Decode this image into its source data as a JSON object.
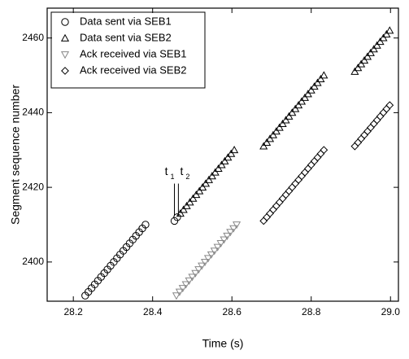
{
  "chart_data": {
    "type": "scatter",
    "xlabel": "Time (s)",
    "ylabel": "Segment sequence number",
    "xlim": [
      28.134,
      29.02
    ],
    "ylim": [
      2389.5,
      2468
    ],
    "xticks": [
      28.2,
      28.4,
      28.6,
      28.8,
      {
        "value": 29,
        "label": "29.0"
      }
    ],
    "yticks": [
      2400,
      2420,
      2440,
      2460
    ],
    "legend": "upper left",
    "annotations": [
      {
        "text": "t",
        "sub": "1",
        "x": 28.455
      },
      {
        "text": "t",
        "sub": "2",
        "x": 28.465
      }
    ],
    "series": [
      {
        "name": "Data sent via SEB1",
        "marker": "circle",
        "color": "#000000",
        "x": [
          28.23,
          28.238,
          28.246,
          28.254,
          28.262,
          28.27,
          28.278,
          28.286,
          28.294,
          28.302,
          28.31,
          28.318,
          28.326,
          28.334,
          28.342,
          28.35,
          28.358,
          28.366,
          28.374,
          28.382,
          28.455,
          28.462
        ],
        "y": [
          2391,
          2392,
          2393,
          2394,
          2395,
          2396,
          2397,
          2398,
          2399,
          2400,
          2401,
          2402,
          2403,
          2404,
          2405,
          2406,
          2407,
          2408,
          2409,
          2410,
          2411,
          2412
        ]
      },
      {
        "name": "Data sent via SEB2",
        "marker": "triangle-up",
        "color": "#000000",
        "x": [
          28.47,
          28.478,
          28.486,
          28.494,
          28.502,
          28.51,
          28.518,
          28.526,
          28.534,
          28.542,
          28.55,
          28.558,
          28.566,
          28.574,
          28.582,
          28.59,
          28.598,
          28.606,
          28.68,
          28.688,
          28.696,
          28.704,
          28.712,
          28.72,
          28.728,
          28.736,
          28.744,
          28.752,
          28.76,
          28.768,
          28.776,
          28.784,
          28.792,
          28.8,
          28.808,
          28.816,
          28.824,
          28.832,
          28.91,
          28.918,
          28.926,
          28.934,
          28.942,
          28.95,
          28.958,
          28.966,
          28.974,
          28.982,
          28.99,
          28.998
        ],
        "y": [
          2413,
          2414,
          2415,
          2416,
          2417,
          2418,
          2419,
          2420,
          2421,
          2422,
          2423,
          2424,
          2425,
          2426,
          2427,
          2428,
          2429,
          2430,
          2431,
          2432,
          2433,
          2434,
          2435,
          2436,
          2437,
          2438,
          2439,
          2440,
          2441,
          2442,
          2443,
          2444,
          2445,
          2446,
          2447,
          2448,
          2449,
          2450,
          2451,
          2452,
          2453,
          2454,
          2455,
          2456,
          2457,
          2458,
          2459,
          2460,
          2461,
          2462
        ]
      },
      {
        "name": "Ack received via SEB1",
        "marker": "triangle-down",
        "color": "#888888",
        "x": [
          28.46,
          28.468,
          28.476,
          28.484,
          28.492,
          28.5,
          28.508,
          28.516,
          28.524,
          28.532,
          28.54,
          28.548,
          28.556,
          28.564,
          28.572,
          28.58,
          28.588,
          28.596,
          28.604,
          28.612
        ],
        "y": [
          2391,
          2392,
          2393,
          2394,
          2395,
          2396,
          2397,
          2398,
          2399,
          2400,
          2401,
          2402,
          2403,
          2404,
          2405,
          2406,
          2407,
          2408,
          2409,
          2410
        ]
      },
      {
        "name": "Ack received via SEB2",
        "marker": "diamond",
        "color": "#000000",
        "x": [
          28.68,
          28.688,
          28.696,
          28.704,
          28.712,
          28.72,
          28.728,
          28.736,
          28.744,
          28.752,
          28.76,
          28.768,
          28.776,
          28.784,
          28.792,
          28.8,
          28.808,
          28.816,
          28.824,
          28.832,
          28.91,
          28.918,
          28.926,
          28.934,
          28.942,
          28.95,
          28.958,
          28.966,
          28.974,
          28.982,
          28.99,
          28.998
        ],
        "y": [
          2411,
          2412,
          2413,
          2414,
          2415,
          2416,
          2417,
          2418,
          2419,
          2420,
          2421,
          2422,
          2423,
          2424,
          2425,
          2426,
          2427,
          2428,
          2429,
          2430,
          2431,
          2432,
          2433,
          2434,
          2435,
          2436,
          2437,
          2438,
          2439,
          2440,
          2441,
          2442
        ]
      }
    ]
  }
}
